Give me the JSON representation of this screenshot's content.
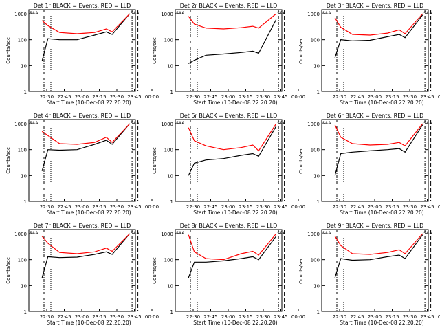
{
  "chart_data": [
    {
      "type": "line",
      "title": "Det 1r BLACK = Events, RED = LLD",
      "ylabel": "Counts/sec",
      "xlabel": "Start Time (10-Dec-08 22:20:20)",
      "xticks": [
        "22:30",
        "22:45",
        "23:00",
        "23:15",
        "23:30",
        "23:45",
        "00:00"
      ],
      "yticks": [
        "1",
        "10",
        "100",
        "1000"
      ],
      "ylim": [
        1,
        1000
      ],
      "flags": [
        "SAA",
        "SAA"
      ],
      "series": [
        {
          "name": "Events",
          "color": "#000000",
          "x": [
            0,
            5,
            15,
            30,
            45,
            55,
            60,
            75
          ],
          "values": [
            15,
            110,
            100,
            100,
            150,
            200,
            160,
            1000
          ]
        },
        {
          "name": "LLD",
          "color": "#ff0000",
          "x": [
            0,
            5,
            15,
            30,
            45,
            55,
            60,
            75
          ],
          "values": [
            550,
            350,
            190,
            170,
            190,
            260,
            200,
            1000
          ]
        }
      ]
    },
    {
      "type": "line",
      "title": "Det 2r BLACK = Events, RED = LLD",
      "ylabel": "Counts/sec",
      "xlabel": "Start Time (10-Dec-08 22:20:20)",
      "xticks": [
        "22:30",
        "22:45",
        "23:00",
        "23:15",
        "23:30",
        "23:45",
        "00:00"
      ],
      "yticks": [
        "1",
        "10",
        "100",
        "1000"
      ],
      "ylim": [
        1,
        1000
      ],
      "flags": [
        "SAA",
        "SAA"
      ],
      "series": [
        {
          "name": "Events",
          "color": "#000000",
          "x": [
            0,
            5,
            15,
            30,
            45,
            55,
            60,
            75
          ],
          "values": [
            12,
            16,
            25,
            28,
            32,
            36,
            30,
            600
          ]
        },
        {
          "name": "LLD",
          "color": "#ff0000",
          "x": [
            0,
            5,
            15,
            30,
            45,
            55,
            60,
            75
          ],
          "values": [
            800,
            400,
            280,
            260,
            290,
            330,
            280,
            1000
          ]
        }
      ]
    },
    {
      "type": "line",
      "title": "Det 3r BLACK = Events, RED = LLD",
      "ylabel": "Counts/sec",
      "xlabel": "Start Time (10-Dec-08 22:20:20)",
      "xticks": [
        "22:30",
        "22:45",
        "23:00",
        "23:15",
        "23:30",
        "23:45",
        "00:00"
      ],
      "yticks": [
        "1",
        "10",
        "100",
        "1000"
      ],
      "ylim": [
        1,
        1000
      ],
      "flags": [
        "SAA",
        "SAA"
      ],
      "series": [
        {
          "name": "Events",
          "color": "#000000",
          "x": [
            0,
            5,
            15,
            30,
            45,
            55,
            60,
            75
          ],
          "values": [
            20,
            100,
            90,
            95,
            130,
            160,
            120,
            900
          ]
        },
        {
          "name": "LLD",
          "color": "#ff0000",
          "x": [
            0,
            5,
            15,
            30,
            45,
            55,
            60,
            75
          ],
          "values": [
            700,
            300,
            160,
            150,
            180,
            240,
            170,
            1000
          ]
        }
      ]
    },
    {
      "type": "line",
      "title": "Det 4r BLACK = Events, RED = LLD",
      "ylabel": "Counts/sec",
      "xlabel": "Start Time (10-Dec-08 22:20:20)",
      "xticks": [
        "22:30",
        "22:45",
        "23:00",
        "23:15",
        "23:30",
        "23:45",
        "00:00"
      ],
      "yticks": [
        "1",
        "10",
        "100",
        "1000"
      ],
      "ylim": [
        1,
        1000
      ],
      "flags": [
        "SAA",
        "SAA"
      ],
      "series": [
        {
          "name": "Events",
          "color": "#000000",
          "x": [
            0,
            5,
            15,
            30,
            45,
            55,
            60,
            75
          ],
          "values": [
            15,
            100,
            95,
            100,
            160,
            230,
            160,
            1000
          ]
        },
        {
          "name": "LLD",
          "color": "#ff0000",
          "x": [
            0,
            5,
            15,
            30,
            45,
            55,
            60,
            75
          ],
          "values": [
            500,
            350,
            170,
            160,
            190,
            300,
            190,
            1000
          ]
        }
      ]
    },
    {
      "type": "line",
      "title": "Det 5r BLACK = Events, RED = LLD",
      "ylabel": "Counts/sec",
      "xlabel": "Start Time (10-Dec-08 22:20:20)",
      "xticks": [
        "22:30",
        "22:45",
        "23:00",
        "23:15",
        "23:30",
        "23:45",
        "00:00"
      ],
      "yticks": [
        "1",
        "10",
        "100",
        "1000"
      ],
      "ylim": [
        1,
        1000
      ],
      "flags": [
        "SAA",
        "SAA"
      ],
      "series": [
        {
          "name": "Events",
          "color": "#000000",
          "x": [
            0,
            5,
            15,
            30,
            45,
            55,
            60,
            75
          ],
          "values": [
            10,
            30,
            40,
            45,
            60,
            70,
            55,
            800
          ]
        },
        {
          "name": "LLD",
          "color": "#ff0000",
          "x": [
            0,
            5,
            15,
            30,
            45,
            55,
            60,
            75
          ],
          "values": [
            700,
            220,
            140,
            100,
            120,
            150,
            90,
            1000
          ]
        }
      ]
    },
    {
      "type": "line",
      "title": "Det 6r BLACK = Events, RED = LLD",
      "ylabel": "Counts/sec",
      "xlabel": "Start Time (10-Dec-08 22:20:20)",
      "xticks": [
        "22:30",
        "22:45",
        "23:00",
        "23:15",
        "23:30",
        "23:45",
        "00:00"
      ],
      "yticks": [
        "1",
        "10",
        "100",
        "1000"
      ],
      "ylim": [
        1,
        1000
      ],
      "flags": [
        "SAA",
        "SAA"
      ],
      "series": [
        {
          "name": "Events",
          "color": "#000000",
          "x": [
            0,
            5,
            15,
            30,
            45,
            55,
            60,
            75
          ],
          "values": [
            10,
            70,
            80,
            90,
            100,
            110,
            80,
            900
          ]
        },
        {
          "name": "LLD",
          "color": "#ff0000",
          "x": [
            0,
            5,
            15,
            30,
            45,
            55,
            60,
            75
          ],
          "values": [
            900,
            300,
            170,
            150,
            160,
            190,
            140,
            1000
          ]
        }
      ]
    },
    {
      "type": "line",
      "title": "Det 7r BLACK = Events, RED = LLD",
      "ylabel": "Counts/sec",
      "xlabel": "Start Time (10-Dec-08 22:20:20)",
      "xticks": [
        "22:30",
        "22:45",
        "23:00",
        "23:15",
        "23:30",
        "23:45",
        "00:00"
      ],
      "yticks": [
        "1",
        "10",
        "100",
        "1000"
      ],
      "ylim": [
        1,
        1000
      ],
      "flags": [
        "SAA",
        "SAA"
      ],
      "series": [
        {
          "name": "Events",
          "color": "#000000",
          "x": [
            0,
            5,
            15,
            30,
            45,
            55,
            60,
            75
          ],
          "values": [
            20,
            130,
            120,
            125,
            160,
            200,
            160,
            1000
          ]
        },
        {
          "name": "LLD",
          "color": "#ff0000",
          "x": [
            0,
            5,
            15,
            30,
            45,
            55,
            60,
            75
          ],
          "values": [
            800,
            430,
            190,
            170,
            200,
            280,
            210,
            1000
          ]
        }
      ]
    },
    {
      "type": "line",
      "title": "Det 8r BLACK = Events, RED = LLD",
      "ylabel": "Counts/sec",
      "xlabel": "Start Time (10-Dec-08 22:20:20)",
      "xticks": [
        "22:30",
        "22:45",
        "23:00",
        "23:15",
        "23:30",
        "23:45",
        "00:00"
      ],
      "yticks": [
        "1",
        "10",
        "100",
        "1000"
      ],
      "ylim": [
        1,
        1000
      ],
      "flags": [
        "SAA",
        "SAA"
      ],
      "series": [
        {
          "name": "Events",
          "color": "#000000",
          "x": [
            0,
            5,
            15,
            30,
            45,
            55,
            60,
            75
          ],
          "values": [
            20,
            80,
            80,
            90,
            110,
            130,
            100,
            800
          ]
        },
        {
          "name": "LLD",
          "color": "#ff0000",
          "x": [
            0,
            5,
            15,
            30,
            45,
            55,
            60,
            75
          ],
          "values": [
            900,
            200,
            110,
            100,
            170,
            210,
            150,
            1000
          ]
        }
      ]
    },
    {
      "type": "line",
      "title": "Det 9r BLACK = Events, RED = LLD",
      "ylabel": "Counts/sec",
      "xlabel": "Start Time (10-Dec-08 22:20:20)",
      "xticks": [
        "22:30",
        "22:45",
        "23:00",
        "23:15",
        "23:30",
        "23:45",
        "00:00"
      ],
      "yticks": [
        "1",
        "10",
        "100",
        "1000"
      ],
      "ylim": [
        1,
        1000
      ],
      "flags": [
        "SAA",
        "SAA"
      ],
      "series": [
        {
          "name": "Events",
          "color": "#000000",
          "x": [
            0,
            5,
            15,
            30,
            45,
            55,
            60,
            75
          ],
          "values": [
            20,
            110,
            95,
            100,
            130,
            150,
            110,
            900
          ]
        },
        {
          "name": "LLD",
          "color": "#ff0000",
          "x": [
            0,
            5,
            15,
            30,
            45,
            55,
            60,
            75
          ],
          "values": [
            800,
            350,
            170,
            160,
            190,
            240,
            170,
            1000
          ]
        }
      ]
    }
  ]
}
